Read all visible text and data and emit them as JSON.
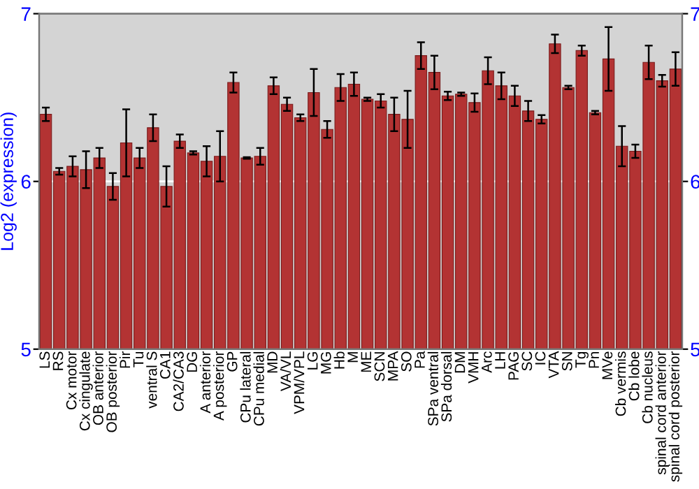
{
  "chart_data": {
    "type": "bar",
    "ylabel": "Log2 (expression)",
    "categories": [
      "LS",
      "RS",
      "Cx motor",
      "Cx cingulate",
      "OB anterior",
      "OB posterior",
      "Pir",
      "Tu",
      "ventral S",
      "CA1",
      "CA2/CA3",
      "DG",
      "A anterior",
      "A posterior",
      "GP",
      "CPu lateral",
      "CPu medial",
      "MD",
      "VA/VL",
      "VPM/VPL",
      "LG",
      "MG",
      "Hb",
      "M",
      "ME",
      "SCN",
      "MPA",
      "SO",
      "Pa",
      "SPa ventral",
      "SPa dorsal",
      "DM",
      "VMH",
      "Arc",
      "LH",
      "PAG",
      "SC",
      "IC",
      "VTA",
      "SN",
      "Tg",
      "Pn",
      "MVe",
      "Cb vermis",
      "Cb lobe",
      "Cb nucleus",
      "spinal cord anterior",
      "spinal cord posterior"
    ],
    "values": [
      6.4,
      6.06,
      6.09,
      6.07,
      6.14,
      5.97,
      6.23,
      6.14,
      6.32,
      5.97,
      6.24,
      6.17,
      6.12,
      6.15,
      6.59,
      6.14,
      6.15,
      6.57,
      6.46,
      6.38,
      6.53,
      6.31,
      6.56,
      6.58,
      6.49,
      6.48,
      6.4,
      6.37,
      6.75,
      6.65,
      6.51,
      6.52,
      6.47,
      6.66,
      6.57,
      6.51,
      6.42,
      6.37,
      6.82,
      6.56,
      6.78,
      6.41,
      6.73,
      6.21,
      6.18,
      6.71,
      6.6,
      6.67
    ],
    "errors": [
      0.04,
      0.02,
      0.06,
      0.11,
      0.06,
      0.08,
      0.2,
      0.06,
      0.08,
      0.12,
      0.04,
      0.01,
      0.09,
      0.15,
      0.06,
      0.005,
      0.05,
      0.05,
      0.04,
      0.02,
      0.14,
      0.05,
      0.08,
      0.07,
      0.01,
      0.04,
      0.1,
      0.17,
      0.08,
      0.1,
      0.025,
      0.01,
      0.055,
      0.08,
      0.08,
      0.06,
      0.06,
      0.025,
      0.055,
      0.01,
      0.03,
      0.01,
      0.19,
      0.12,
      0.04,
      0.1,
      0.035,
      0.1
    ],
    "color": "#b33333",
    "ylim": [
      5,
      7
    ],
    "yticks": [
      5,
      6,
      7
    ],
    "y2lim": [
      5,
      7
    ],
    "y2ticks": [
      5,
      6,
      7
    ],
    "grid": "y"
  }
}
